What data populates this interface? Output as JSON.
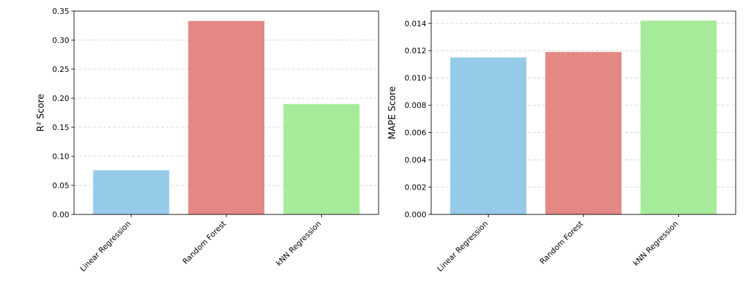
{
  "chart_data": [
    {
      "type": "bar",
      "categories": [
        "Linear Regression",
        "Random Forest",
        "kNN Regression"
      ],
      "values": [
        0.076,
        0.333,
        0.19
      ],
      "colors": [
        "#95cbe8",
        "#e38883",
        "#a6eb9a"
      ],
      "title": "",
      "xlabel": "",
      "ylabel": "R² Score",
      "ylim": [
        0,
        0.35
      ],
      "yticks": [
        "0.00",
        "0.05",
        "0.10",
        "0.15",
        "0.20",
        "0.25",
        "0.30",
        "0.35"
      ],
      "grid": "y-dashed"
    },
    {
      "type": "bar",
      "categories": [
        "Linear Regression",
        "Random Forest",
        "kNN Regression"
      ],
      "values": [
        0.0115,
        0.0119,
        0.0142
      ],
      "colors": [
        "#95cbe8",
        "#e38883",
        "#a6eb9a"
      ],
      "title": "",
      "xlabel": "",
      "ylabel": "MAPE Score",
      "ylim": [
        0,
        0.0149
      ],
      "yticks": [
        "0.000",
        "0.002",
        "0.004",
        "0.006",
        "0.008",
        "0.010",
        "0.012",
        "0.014"
      ],
      "grid": "y-dashed"
    }
  ]
}
